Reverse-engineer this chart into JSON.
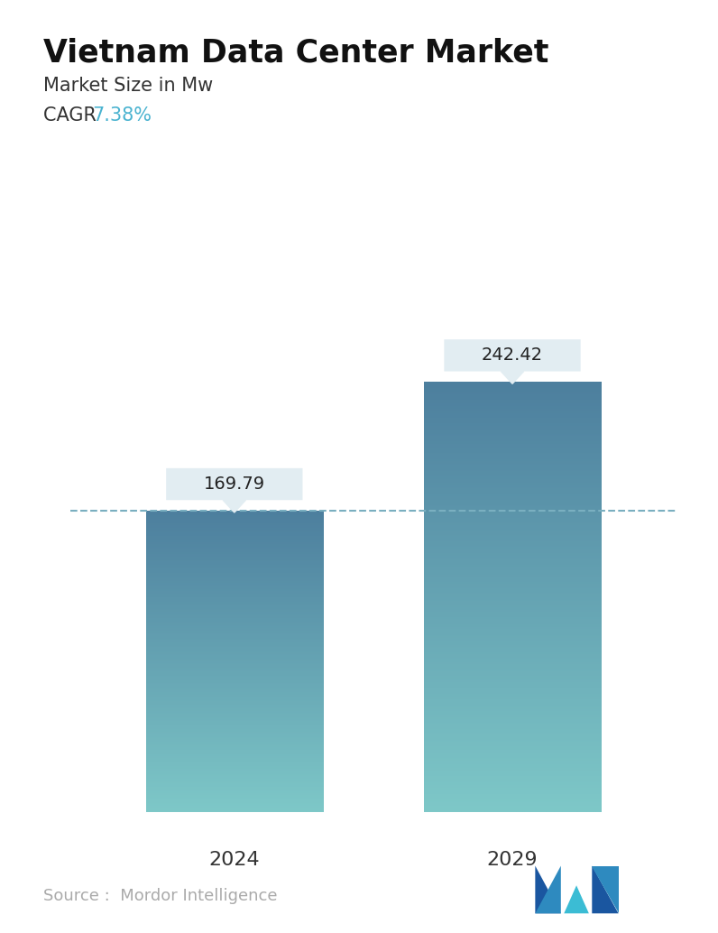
{
  "title": "Vietnam Data Center Market",
  "subtitle": "Market Size in Mw",
  "cagr_label": "CAGR ",
  "cagr_value": "7.38%",
  "cagr_color": "#4ab3d0",
  "categories": [
    "2024",
    "2029"
  ],
  "values": [
    169.79,
    242.42
  ],
  "bar_top_color": "#4d7f9e",
  "bar_bot_color": "#7ec8c8",
  "dashed_line_y": 169.79,
  "dashed_line_color": "#7aafc0",
  "background_color": "#ffffff",
  "source_text": "Source :  Mordor Intelligence",
  "source_color": "#aaaaaa",
  "label_box_color": "#e2edf2",
  "label_text_color": "#222222",
  "ylim": [
    0,
    300
  ],
  "bar_width": 0.28,
  "x_positions": [
    0.28,
    0.72
  ]
}
